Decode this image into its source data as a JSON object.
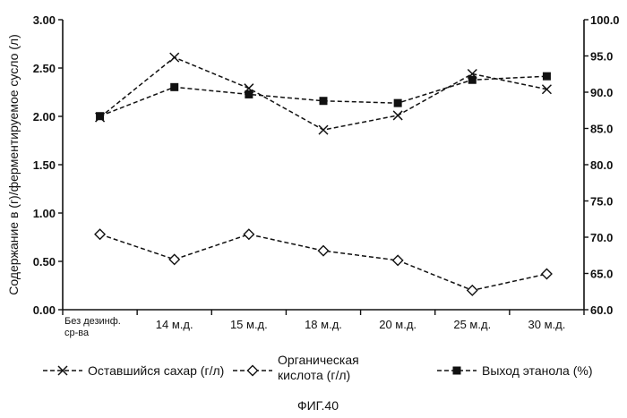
{
  "chart_data": {
    "type": "line",
    "title": "",
    "ylabel": "Содержание в (г)/ферментируемое сусло (л)",
    "y2label": "",
    "xlabel": "",
    "categories": [
      [
        "Без дезинф.",
        "ср-ва"
      ],
      [
        "14 м.д."
      ],
      [
        "15 м.д."
      ],
      [
        "18 м.д."
      ],
      [
        "20 м.д."
      ],
      [
        "25 м.д."
      ],
      [
        "30 м.д."
      ]
    ],
    "ylim": [
      0,
      3
    ],
    "y2lim": [
      60,
      100
    ],
    "yticks": [
      "0.00",
      "0.50",
      "1.00",
      "1.50",
      "2.00",
      "2.50",
      "3.00"
    ],
    "y2ticks": [
      "60.0",
      "65.0",
      "70.0",
      "75.0",
      "80.0",
      "85.0",
      "90.0",
      "95.0",
      "100.0"
    ],
    "grid": false,
    "legend_position": "bottom",
    "series": [
      {
        "name": "Оставшийся сахар (г/л)",
        "axis": "left",
        "marker": "x",
        "values": [
          1.99,
          2.61,
          2.29,
          1.86,
          2.01,
          2.44,
          2.28
        ]
      },
      {
        "name": "Органическая кислота (г/л)",
        "axis": "left",
        "marker": "diamond",
        "values": [
          0.78,
          0.52,
          0.78,
          0.61,
          0.51,
          0.2,
          0.37
        ]
      },
      {
        "name": "Выход этанола (%)",
        "axis": "right",
        "marker": "square",
        "values": [
          86.7,
          90.7,
          89.7,
          88.8,
          88.5,
          91.7,
          92.2
        ]
      }
    ]
  },
  "legend": {
    "items": [
      [
        "Оставшийся сахар (г/л)"
      ],
      [
        "Органическая",
        "кислота (г/л)"
      ],
      [
        "Выход этанола (%)"
      ]
    ]
  },
  "caption": "ФИГ.40"
}
